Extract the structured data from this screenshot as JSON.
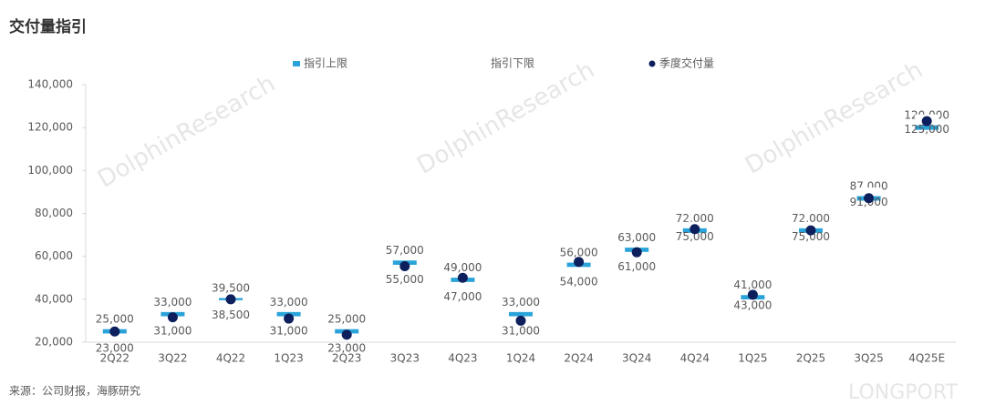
{
  "chart_data": {
    "type": "guidance",
    "title": "交付量指引",
    "source": "来源：公司财报，海豚研究",
    "watermarks": [
      "DolphinResearch",
      "LONGPORT"
    ],
    "categories": [
      "2Q22",
      "3Q22",
      "4Q22",
      "1Q23",
      "2Q23",
      "3Q23",
      "4Q23",
      "1Q24",
      "2Q24",
      "3Q24",
      "4Q24",
      "1Q25",
      "2Q25",
      "3Q25",
      "4Q25E"
    ],
    "series": [
      {
        "name": "指引上限",
        "color": "#29a3d9",
        "values": [
          25000,
          33000,
          39500,
          33000,
          25000,
          57000,
          49000,
          33000,
          56000,
          63000,
          72000,
          41000,
          72000,
          87000,
          120000
        ],
        "value_labels": [
          "25,000",
          "33,000",
          "39,500",
          "33,000",
          "25,000",
          "57,000",
          "49,000",
          "33,000",
          "56,000",
          "63,000",
          "72,000",
          "41,000",
          "72,000",
          "87,000",
          "120,000"
        ]
      },
      {
        "name": "指引下限",
        "color": "#ffffff",
        "values": [
          23000,
          31000,
          38500,
          31000,
          23000,
          55000,
          47000,
          31000,
          54000,
          61000,
          75000,
          43000,
          75000,
          91000,
          125000
        ],
        "value_labels": [
          "23,000",
          "31,000",
          "38,500",
          "31,000",
          "23,000",
          "55,000",
          "47,000",
          "31,000",
          "54,000",
          "61,000",
          "75,000",
          "43,000",
          "75,000",
          "91,000",
          "125,000"
        ]
      },
      {
        "name": "季度交付量",
        "color": "#0d1f5c",
        "values": [
          25000,
          31600,
          40000,
          31000,
          23500,
          55400,
          50000,
          30000,
          57400,
          61900,
          72700,
          42100,
          72100,
          87100,
          123000
        ]
      }
    ],
    "ylim": [
      20000,
      140000
    ],
    "yticks": [
      {
        "value": 20000,
        "label": "20,000"
      },
      {
        "value": 40000,
        "label": "40,000"
      },
      {
        "value": 60000,
        "label": "60,000"
      },
      {
        "value": 80000,
        "label": "80,000"
      },
      {
        "value": 100000,
        "label": "100,000"
      },
      {
        "value": 120000,
        "label": "120,000"
      },
      {
        "value": 140000,
        "label": "140,000"
      }
    ]
  }
}
